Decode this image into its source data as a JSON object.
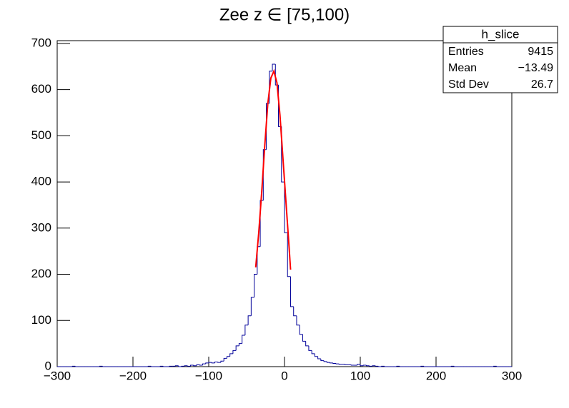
{
  "chart_data": {
    "type": "histogram",
    "title": "Zee z ∈ [75,100)",
    "bins": [
      -300,
      -296,
      -292,
      -288,
      -284,
      -280,
      -276,
      -272,
      -268,
      -264,
      -260,
      -256,
      -252,
      -248,
      -244,
      -240,
      -236,
      -232,
      -228,
      -224,
      -220,
      -216,
      -212,
      -208,
      -204,
      -200,
      -196,
      -192,
      -188,
      -184,
      -180,
      -176,
      -172,
      -168,
      -164,
      -160,
      -156,
      -152,
      -148,
      -144,
      -140,
      -136,
      -132,
      -128,
      -124,
      -120,
      -116,
      -112,
      -108,
      -104,
      -100,
      -96,
      -92,
      -88,
      -84,
      -80,
      -76,
      -72,
      -68,
      -64,
      -60,
      -56,
      -52,
      -48,
      -44,
      -40,
      -36,
      -32,
      -28,
      -24,
      -20,
      -16,
      -12,
      -8,
      -4,
      0,
      4,
      8,
      12,
      16,
      20,
      24,
      28,
      32,
      36,
      40,
      44,
      48,
      52,
      56,
      60,
      64,
      68,
      72,
      76,
      80,
      84,
      88,
      92,
      96,
      100,
      104,
      108,
      112,
      116,
      120,
      124,
      128,
      132,
      136,
      140,
      144,
      148,
      152,
      156,
      160,
      164,
      168,
      172,
      176,
      180,
      184,
      188,
      192,
      196,
      200,
      204,
      208,
      212,
      216,
      220,
      224,
      228,
      232,
      236,
      240,
      244,
      248,
      252,
      256,
      260,
      264,
      268,
      272,
      276,
      280,
      284,
      288,
      292,
      296,
      300
    ],
    "series": [
      {
        "name": "h_slice",
        "color": "#000099",
        "values": [
          0,
          0,
          0,
          0,
          0,
          1,
          0,
          0,
          0,
          0,
          0,
          0,
          0,
          0,
          1,
          0,
          0,
          0,
          0,
          0,
          0,
          0,
          0,
          0,
          0,
          0,
          0,
          0,
          0,
          0,
          1,
          0,
          0,
          0,
          1,
          0,
          0,
          1,
          1,
          2,
          0,
          1,
          2,
          1,
          3,
          2,
          4,
          3,
          6,
          8,
          9,
          8,
          10,
          9,
          12,
          18,
          22,
          28,
          35,
          45,
          50,
          68,
          90,
          110,
          150,
          200,
          260,
          360,
          470,
          570,
          640,
          655,
          610,
          520,
          400,
          290,
          195,
          130,
          110,
          90,
          70,
          55,
          45,
          35,
          28,
          22,
          17,
          13,
          11,
          9,
          8,
          7,
          6,
          5,
          5,
          4,
          4,
          3,
          3,
          5,
          2,
          3,
          2,
          1,
          2,
          1,
          0,
          1,
          0,
          0,
          0,
          0,
          1,
          0,
          0,
          0,
          0,
          0,
          0,
          0,
          1,
          0,
          0,
          0,
          0,
          0,
          0,
          0,
          0,
          0,
          1,
          0,
          0,
          0,
          0,
          0,
          0,
          0,
          0,
          0,
          0,
          0,
          0,
          0,
          1,
          0,
          0,
          0,
          0,
          0
        ]
      },
      {
        "color": "#ff0000",
        "x": [
          -38,
          -34,
          -30,
          -26,
          -22,
          -18,
          -14,
          -10,
          -6,
          -2,
          2,
          6,
          8
        ],
        "values": [
          215,
          290,
          380,
          480,
          570,
          625,
          640,
          615,
          545,
          450,
          355,
          260,
          210
        ]
      }
    ],
    "xlim": [
      -300,
      300
    ],
    "xticks": [
      {
        "value": -300,
        "label": "−300"
      },
      {
        "value": -200,
        "label": "−200"
      },
      {
        "value": -100,
        "label": "−100"
      },
      0,
      100,
      200,
      300
    ],
    "ylim": [
      0,
      706
    ],
    "yticks": [
      0,
      100,
      200,
      300,
      400,
      500,
      600,
      700
    ],
    "stats": {
      "title": "h_slice",
      "rows": [
        [
          "Entries",
          "9415"
        ],
        [
          "Mean",
          "−13.49"
        ],
        [
          "Std Dev",
          "26.7"
        ]
      ]
    }
  }
}
